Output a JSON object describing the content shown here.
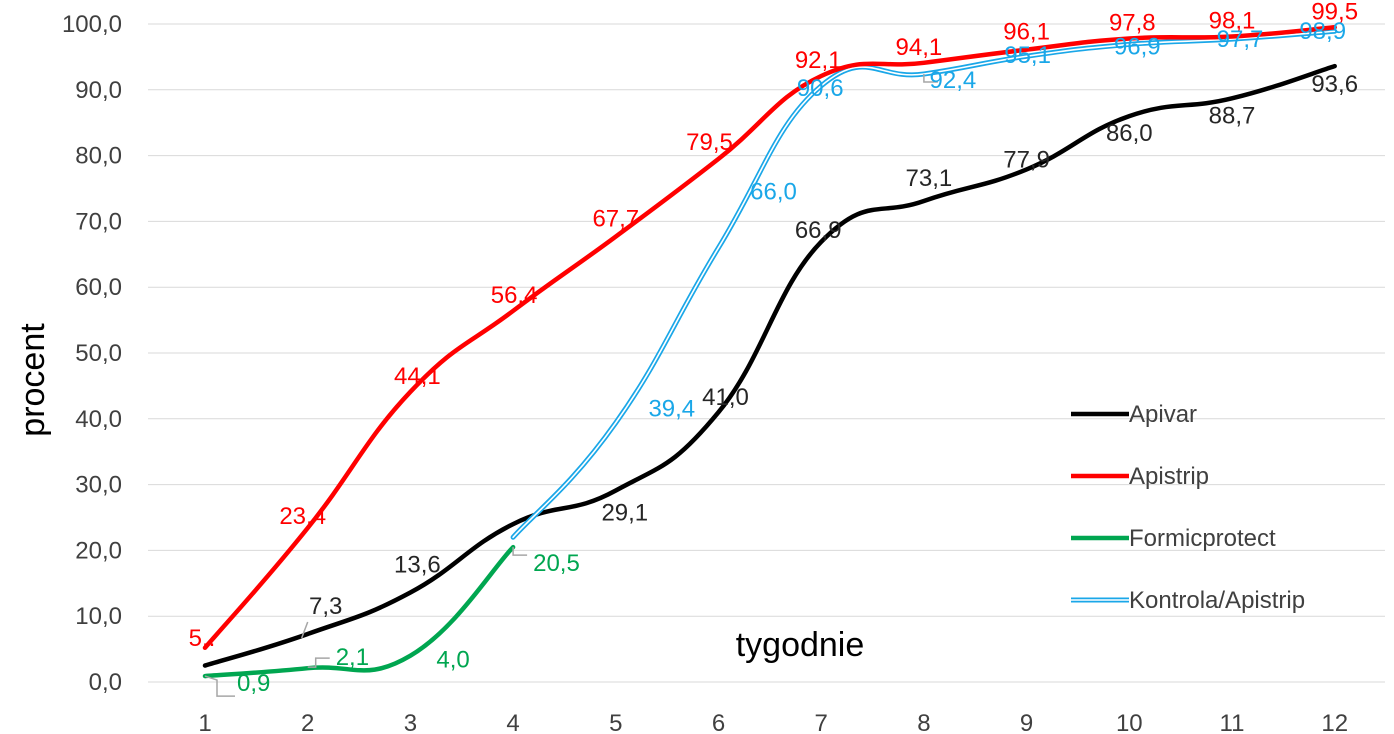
{
  "chart_data": {
    "type": "line",
    "xlabel": "tygodnie",
    "ylabel": "procent",
    "x": [
      1,
      2,
      3,
      4,
      5,
      6,
      7,
      8,
      9,
      10,
      11,
      12
    ],
    "ylim": [
      0,
      100
    ],
    "yticks": [
      "0,0",
      "10,0",
      "20,0",
      "30,0",
      "40,0",
      "50,0",
      "60,0",
      "70,0",
      "80,0",
      "90,0",
      "100,0"
    ],
    "xticks": [
      "1",
      "2",
      "3",
      "4",
      "5",
      "6",
      "7",
      "8",
      "9",
      "10",
      "11",
      "12"
    ],
    "grid": "horizontal",
    "legend_position": "right",
    "series": [
      {
        "name": "Apivar",
        "color": "#000000",
        "style": "solid",
        "x": [
          1,
          2,
          3,
          4,
          5,
          6,
          7,
          8,
          9,
          10,
          11,
          12
        ],
        "values": [
          2.5,
          7.3,
          13.6,
          24.0,
          29.1,
          41.0,
          66.9,
          73.1,
          77.9,
          86.0,
          88.7,
          93.6
        ],
        "labels": [
          {
            "x": 2,
            "text": "7,3"
          },
          {
            "x": 3,
            "text": "13,6"
          },
          {
            "x": 5,
            "text": "29,1"
          },
          {
            "x": 6,
            "text": "41,0"
          },
          {
            "x": 7,
            "text": "66,9"
          },
          {
            "x": 8,
            "text": "73,1"
          },
          {
            "x": 9,
            "text": "77,9"
          },
          {
            "x": 10,
            "text": "86,0"
          },
          {
            "x": 11,
            "text": "88,7"
          },
          {
            "x": 12,
            "text": "93,6"
          }
        ]
      },
      {
        "name": "Apistrip",
        "color": "#ff0000",
        "style": "solid",
        "x": [
          1,
          2,
          3,
          4,
          5,
          6,
          7,
          8,
          9,
          10,
          11,
          12
        ],
        "values": [
          5.2,
          23.4,
          44.1,
          56.4,
          67.7,
          79.5,
          92.1,
          94.1,
          96.1,
          97.8,
          98.1,
          99.5
        ],
        "labels": [
          {
            "x": 1,
            "text": "5.."
          },
          {
            "x": 2,
            "text": "23,4"
          },
          {
            "x": 3,
            "text": "44,1"
          },
          {
            "x": 4,
            "text": "56,4"
          },
          {
            "x": 5,
            "text": "67,7"
          },
          {
            "x": 6,
            "text": "79,5"
          },
          {
            "x": 7,
            "text": "92,1"
          },
          {
            "x": 8,
            "text": "94,1"
          },
          {
            "x": 9,
            "text": "96,1"
          },
          {
            "x": 10,
            "text": "97,8"
          },
          {
            "x": 11,
            "text": "98,1"
          },
          {
            "x": 12,
            "text": "99,5"
          }
        ]
      },
      {
        "name": "Formicprotect",
        "color": "#00a650",
        "style": "solid",
        "x": [
          1,
          2,
          3,
          4
        ],
        "values": [
          0.9,
          2.1,
          4.0,
          20.5
        ],
        "labels": [
          {
            "x": 1,
            "text": "0,9"
          },
          {
            "x": 2,
            "text": "2,1"
          },
          {
            "x": 3,
            "text": "4,0"
          },
          {
            "x": 4,
            "text": "20,5"
          }
        ]
      },
      {
        "name": "Kontrola/Apistrip",
        "color": "#1aa7e8",
        "style": "double",
        "x": [
          4,
          5,
          6,
          7,
          8,
          9,
          10,
          11,
          12
        ],
        "values": [
          22.0,
          39.4,
          66.0,
          90.6,
          92.4,
          95.1,
          96.9,
          97.7,
          98.9
        ],
        "labels": [
          {
            "x": 5,
            "text": "39,4"
          },
          {
            "x": 6,
            "text": "66,0"
          },
          {
            "x": 7,
            "text": "90,6"
          },
          {
            "x": 8,
            "text": "92,4"
          },
          {
            "x": 9,
            "text": "95,1"
          },
          {
            "x": 10,
            "text": "96,9"
          },
          {
            "x": 11,
            "text": "97,7"
          },
          {
            "x": 12,
            "text": "98,9"
          }
        ]
      }
    ]
  }
}
